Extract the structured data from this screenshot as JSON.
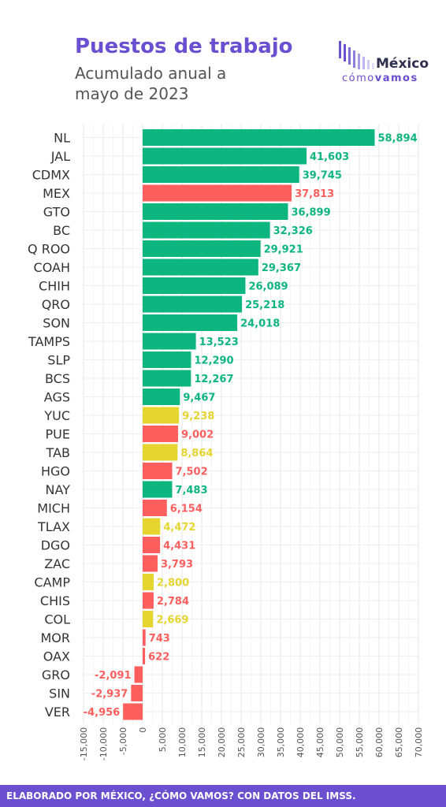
{
  "header": {
    "title": "Puestos de trabajo",
    "subtitle_line1": "Acumulado anual a",
    "subtitle_line2": "mayo de 2023"
  },
  "logo": {
    "word": "México",
    "sub_regular": "cómo",
    "sub_bold": "vamos"
  },
  "footer": {
    "text": "ELABORADO POR MÉXICO, ¿CÓMO VAMOS? CON DATOS DEL IMSS."
  },
  "colors": {
    "green": "#0db57f",
    "red": "#fd5f5f",
    "yellow": "#e5d531",
    "accent": "#6a4fd1"
  },
  "chart_data": {
    "type": "bar",
    "orientation": "horizontal",
    "title": "Puestos de trabajo",
    "subtitle": "Acumulado anual a mayo de 2023",
    "xlim": [
      -15000,
      70000
    ],
    "x_ticks": [
      "-15,000",
      "-10,000",
      "-5,000",
      "0",
      "5,000",
      "10,000",
      "15,000",
      "20,000",
      "25,000",
      "30,000",
      "35,000",
      "40,000",
      "45,000",
      "50,000",
      "55,000",
      "60,000",
      "65,000",
      "70,000"
    ],
    "x_tick_values": [
      -15000,
      -10000,
      -5000,
      0,
      5000,
      10000,
      15000,
      20000,
      25000,
      30000,
      35000,
      40000,
      45000,
      50000,
      55000,
      60000,
      65000,
      70000
    ],
    "grid": true,
    "categories": [
      "NL",
      "JAL",
      "CDMX",
      "MEX",
      "GTO",
      "BC",
      "Q ROO",
      "COAH",
      "CHIH",
      "QRO",
      "SON",
      "TAMPS",
      "SLP",
      "BCS",
      "AGS",
      "YUC",
      "PUE",
      "TAB",
      "HGO",
      "NAY",
      "MICH",
      "TLAX",
      "DGO",
      "ZAC",
      "CAMP",
      "CHIS",
      "COL",
      "MOR",
      "OAX",
      "GRO",
      "SIN",
      "VER"
    ],
    "values": [
      58894,
      41603,
      39745,
      37813,
      36899,
      32326,
      29921,
      29367,
      26089,
      25218,
      24018,
      13523,
      12290,
      12267,
      9467,
      9238,
      9002,
      8864,
      7502,
      7483,
      6154,
      4472,
      4431,
      3793,
      2800,
      2784,
      2669,
      743,
      622,
      -2091,
      -2937,
      -4956
    ],
    "labels": [
      "58,894",
      "41,603",
      "39,745",
      "37,813",
      "36,899",
      "32,326",
      "29,921",
      "29,367",
      "26,089",
      "25,218",
      "24,018",
      "13,523",
      "12,290",
      "12,267",
      "9,467",
      "9,238",
      "9,002",
      "8,864",
      "7,502",
      "7,483",
      "6,154",
      "4,472",
      "4,431",
      "3,793",
      "2,800",
      "2,784",
      "2,669",
      "743",
      "622",
      "-2,091",
      "-2,937",
      "-4,956"
    ],
    "bar_colors": [
      "green",
      "green",
      "green",
      "red",
      "green",
      "green",
      "green",
      "green",
      "green",
      "green",
      "green",
      "green",
      "green",
      "green",
      "green",
      "yellow",
      "red",
      "yellow",
      "red",
      "green",
      "red",
      "yellow",
      "red",
      "red",
      "yellow",
      "red",
      "yellow",
      "red",
      "red",
      "red",
      "red",
      "red"
    ]
  }
}
